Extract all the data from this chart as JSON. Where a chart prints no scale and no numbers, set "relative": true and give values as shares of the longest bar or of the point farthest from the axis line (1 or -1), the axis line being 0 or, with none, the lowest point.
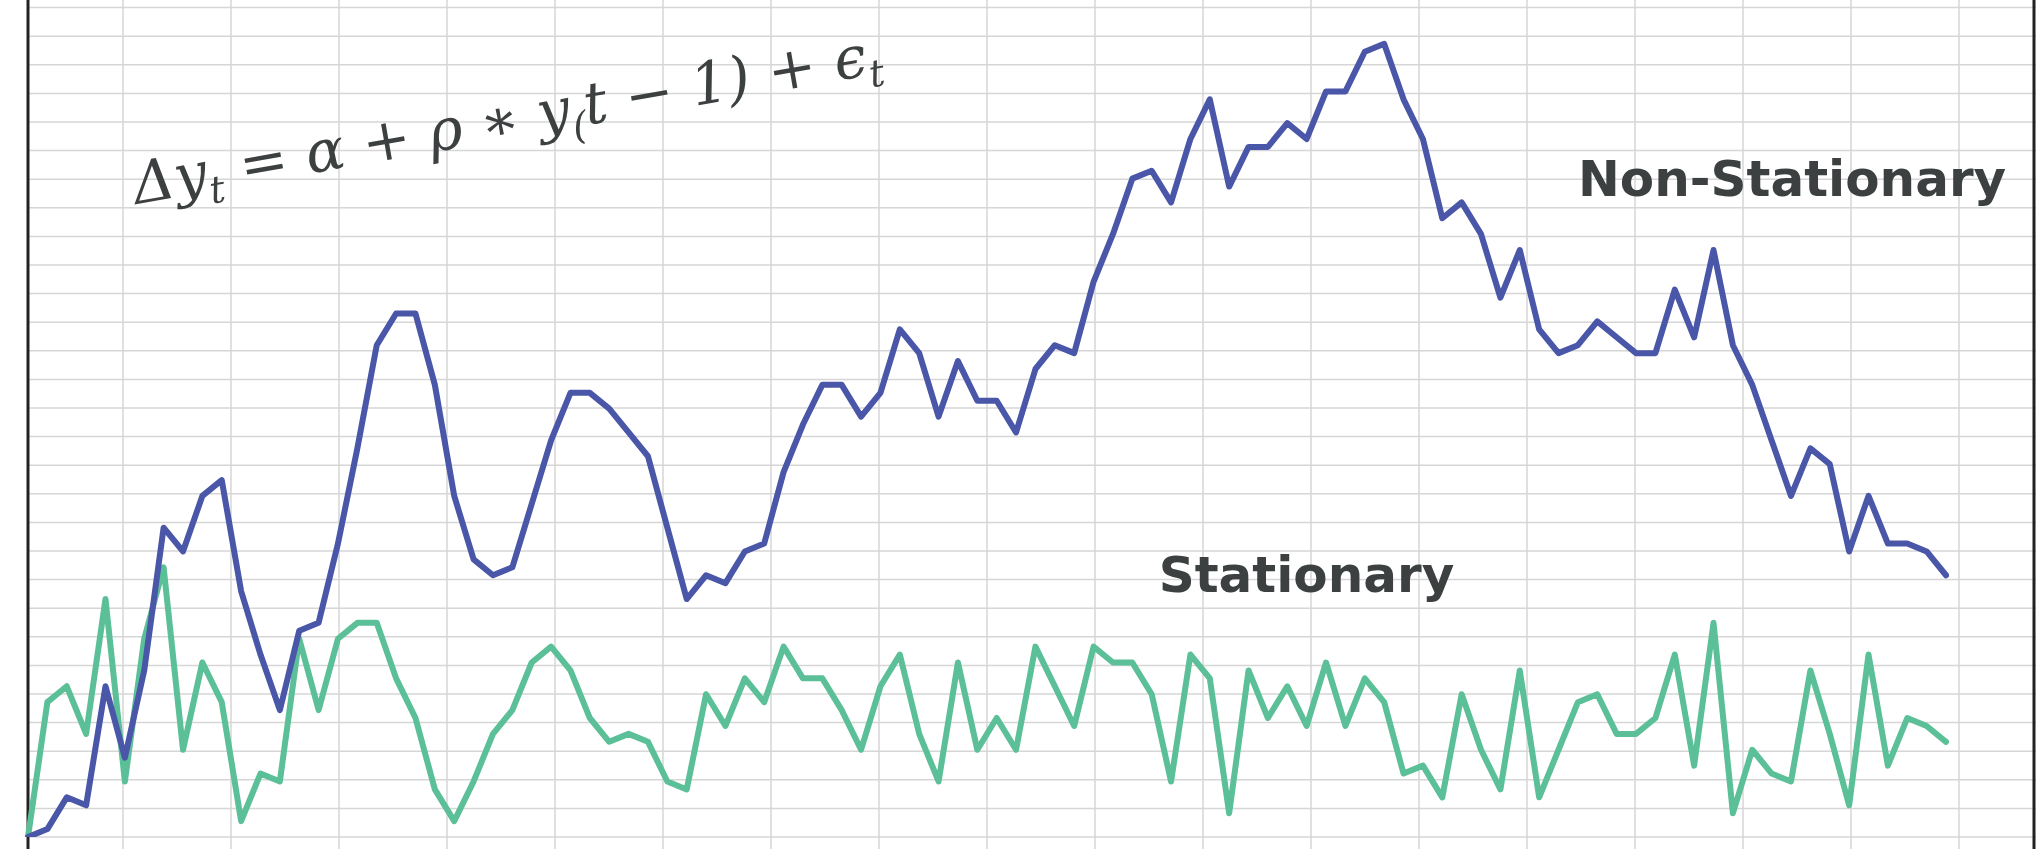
{
  "chart_data": {
    "type": "line",
    "relative": true,
    "grid": true,
    "legend": false,
    "marker": "none",
    "line_style": "solid",
    "categories": [
      null,
      null,
      null,
      null,
      null,
      null,
      null,
      null,
      null,
      null,
      null,
      null,
      null,
      null,
      null,
      null,
      null,
      null,
      null,
      null,
      null,
      null,
      null,
      null,
      null,
      null,
      null,
      null,
      null,
      null,
      null,
      null,
      null,
      null,
      null,
      null,
      null,
      null,
      null,
      null,
      null,
      null,
      null,
      null,
      null,
      null,
      null,
      null,
      null,
      null,
      null,
      null,
      null,
      null,
      null,
      null,
      null,
      null,
      null,
      null,
      null,
      null,
      null,
      null,
      null,
      null,
      null,
      null,
      null,
      null,
      null,
      null,
      null,
      null,
      null,
      null,
      null,
      null,
      null,
      null,
      null,
      null,
      null,
      null,
      null,
      null,
      null,
      null,
      null,
      null,
      null,
      null,
      null,
      null,
      null,
      null,
      null,
      null,
      null,
      null
    ],
    "annotations": [
      "Δy$_{t}$ = α + ρ ∗ y$_{(}$t − 1) + ϵ$_{t}$"
    ],
    "series": [
      {
        "name": "Non-Stationary",
        "color": "#4a56a8",
        "values": [
          0,
          0.01,
          0.05,
          0.04,
          0.19,
          0.1,
          0.21,
          0.39,
          0.36,
          0.43,
          0.45,
          0.31,
          0.23,
          0.16,
          0.26,
          0.27,
          0.37,
          0.49,
          0.62,
          0.66,
          0.66,
          0.57,
          0.43,
          0.35,
          0.33,
          0.34,
          0.42,
          0.5,
          0.56,
          0.56,
          0.54,
          0.51,
          0.48,
          0.39,
          0.3,
          0.33,
          0.32,
          0.36,
          0.37,
          0.46,
          0.52,
          0.57,
          0.57,
          0.53,
          0.56,
          0.64,
          0.61,
          0.53,
          0.6,
          0.55,
          0.55,
          0.51,
          0.59,
          0.62,
          0.61,
          0.7,
          0.76,
          0.83,
          0.84,
          0.8,
          0.88,
          0.93,
          0.82,
          0.87,
          0.87,
          0.9,
          0.88,
          0.94,
          0.94,
          0.99,
          1,
          0.93,
          0.88,
          0.78,
          0.8,
          0.76,
          0.68,
          0.74,
          0.64,
          0.61,
          0.62,
          0.65,
          0.63,
          0.61,
          0.61,
          0.69,
          0.63,
          0.74,
          0.62,
          0.57,
          0.5,
          0.43,
          0.49,
          0.47,
          0.36,
          0.43,
          0.37,
          0.37,
          0.36,
          0.33
        ]
      },
      {
        "name": "Stationary",
        "color": "#5bbf98",
        "values": [
          0,
          0.17,
          0.19,
          0.13,
          0.3,
          0.07,
          0.25,
          0.34,
          0.11,
          0.22,
          0.17,
          0.02,
          0.08,
          0.07,
          0.25,
          0.16,
          0.25,
          0.27,
          0.27,
          0.2,
          0.15,
          0.06,
          0.02,
          0.07,
          0.13,
          0.16,
          0.22,
          0.24,
          0.21,
          0.15,
          0.12,
          0.13,
          0.12,
          0.07,
          0.06,
          0.18,
          0.14,
          0.2,
          0.17,
          0.24,
          0.2,
          0.2,
          0.16,
          0.11,
          0.19,
          0.23,
          0.13,
          0.07,
          0.22,
          0.11,
          0.15,
          0.11,
          0.24,
          0.19,
          0.14,
          0.24,
          0.22,
          0.22,
          0.18,
          0.07,
          0.23,
          0.2,
          0.03,
          0.21,
          0.15,
          0.19,
          0.14,
          0.22,
          0.14,
          0.2,
          0.17,
          0.08,
          0.09,
          0.05,
          0.18,
          0.11,
          0.06,
          0.21,
          0.05,
          0.11,
          0.17,
          0.18,
          0.13,
          0.13,
          0.15,
          0.23,
          0.09,
          0.27,
          0.03,
          0.11,
          0.08,
          0.07,
          0.21,
          0.13,
          0.04,
          0.23,
          0.09,
          0.15,
          0.14,
          0.12
        ]
      }
    ]
  }
}
